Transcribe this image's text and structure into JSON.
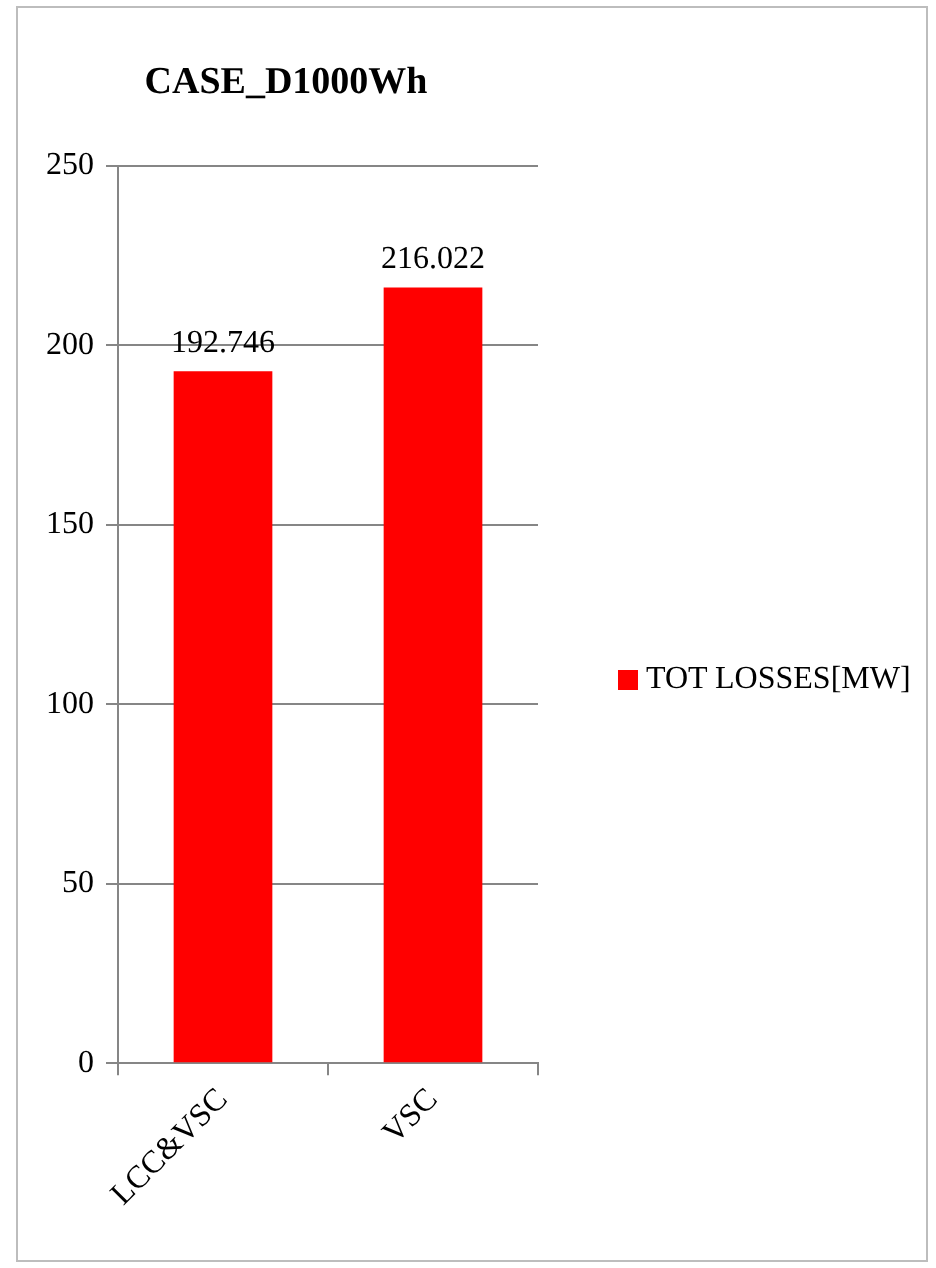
{
  "chart_data": {
    "type": "bar",
    "title": "CASE_D1000Wh",
    "categories": [
      "LCC&VSC",
      "VSC"
    ],
    "series": [
      {
        "name": "TOT LOSSES[MW]",
        "color": "#ff0000",
        "values": [
          192.746,
          216.022
        ]
      }
    ],
    "ylim": [
      0,
      250
    ],
    "yticks": [
      0,
      50,
      100,
      150,
      200,
      250
    ],
    "grid": "y",
    "legend": "right",
    "data_labels": true
  }
}
